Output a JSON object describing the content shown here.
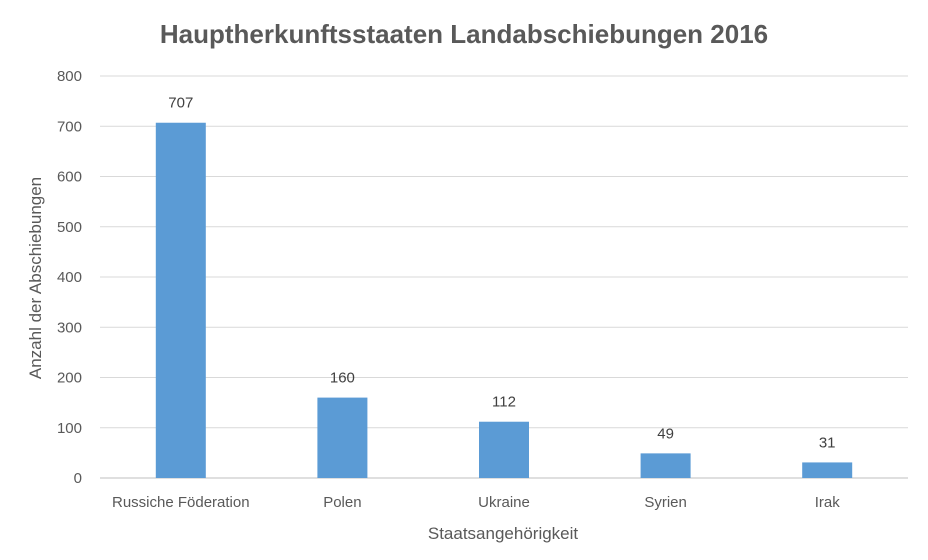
{
  "chart_data": {
    "type": "bar",
    "title": "Hauptherkunftsstaaten Landabschiebungen 2016",
    "xlabel": "Staatsangehörigkeit",
    "ylabel": "Anzahl der Abschiebungen",
    "categories": [
      "Russiche Föderation",
      "Polen",
      "Ukraine",
      "Syrien",
      "Irak"
    ],
    "values": [
      707,
      160,
      112,
      49,
      31
    ],
    "data_labels": [
      "707",
      "160",
      "112",
      "49",
      "31"
    ],
    "ylim": [
      0,
      800
    ],
    "yticks": [
      "0",
      "100",
      "200",
      "300",
      "400",
      "500",
      "600",
      "700",
      "800"
    ],
    "grid": true,
    "legend": "none",
    "bar_color": "#5b9bd5",
    "grid_color": "#d9d9d9"
  }
}
